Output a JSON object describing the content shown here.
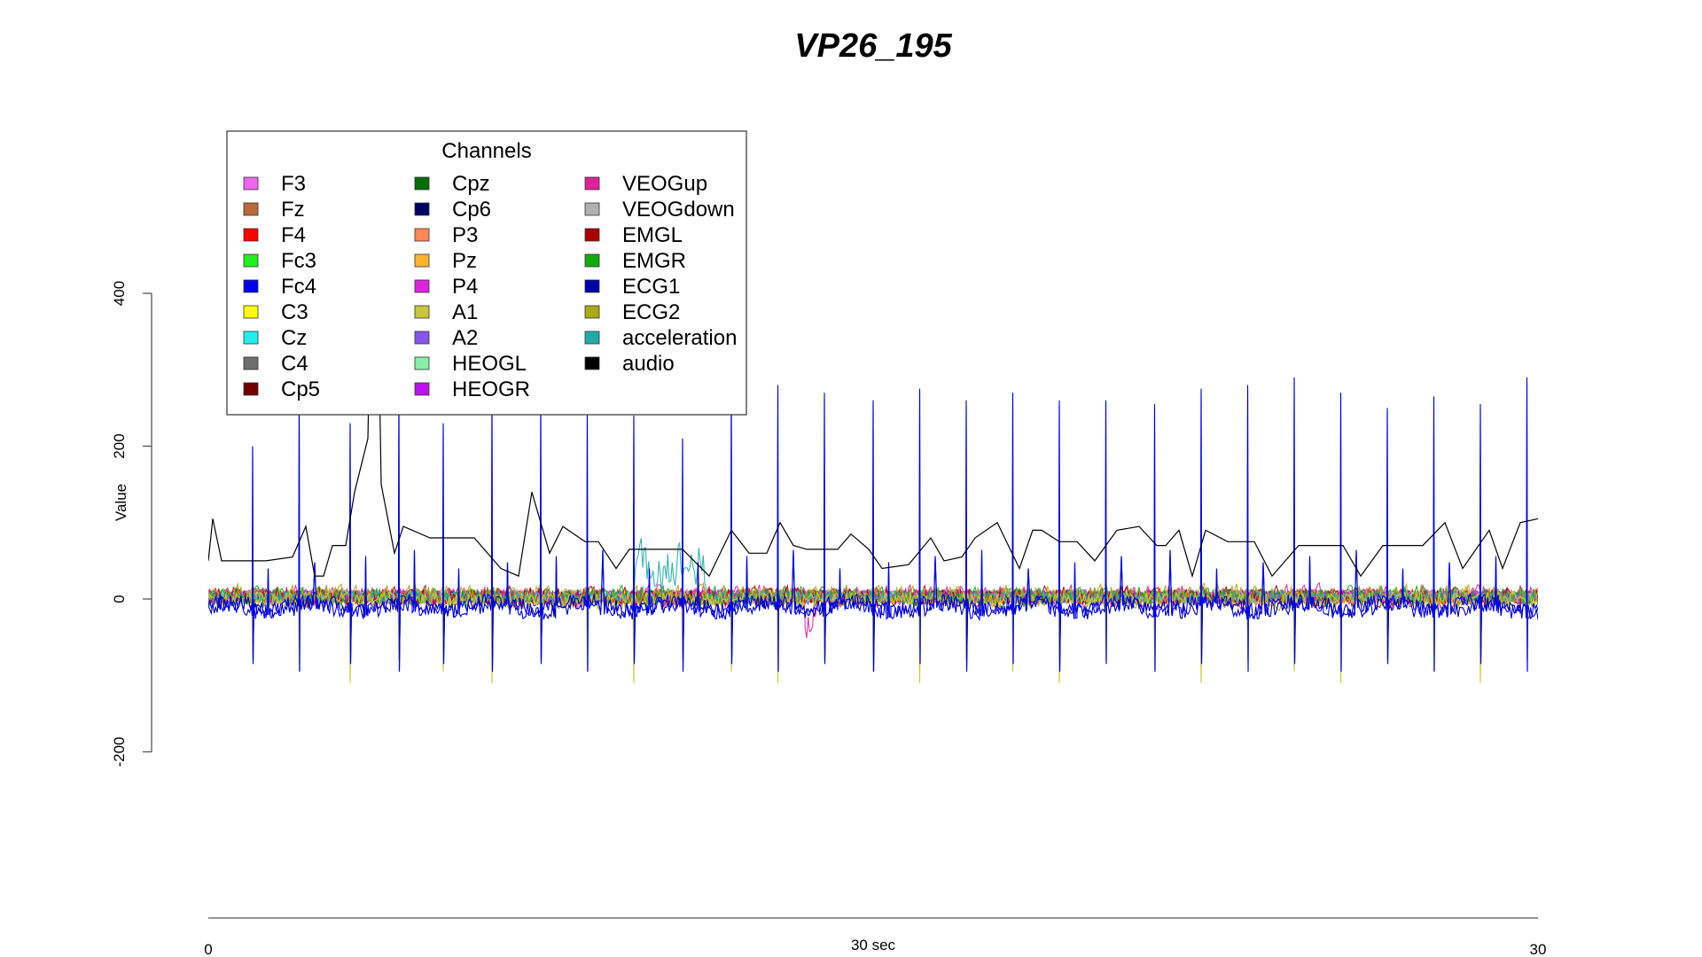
{
  "chart_data": {
    "type": "line",
    "title": "VP26_195",
    "xlabel": "30 sec",
    "ylabel": "Value",
    "xlim": [
      0,
      30
    ],
    "ylim": [
      -330,
      530
    ],
    "x_ticks": [
      "0",
      "30"
    ],
    "y_ticks": [
      400,
      200,
      0,
      -200
    ],
    "grid": false,
    "legend": {
      "title": "Channels",
      "placement": "top-left",
      "entries": [
        {
          "name": "F3",
          "color": "#EE66EE"
        },
        {
          "name": "Fz",
          "color": "#B86A3A"
        },
        {
          "name": "F4",
          "color": "#FF0000"
        },
        {
          "name": "Fc3",
          "color": "#22EE22"
        },
        {
          "name": "Fc4",
          "color": "#0000EE"
        },
        {
          "name": "C3",
          "color": "#FFFF00"
        },
        {
          "name": "Cz",
          "color": "#22EEEE"
        },
        {
          "name": "C4",
          "color": "#6E6E6E"
        },
        {
          "name": "Cp5",
          "color": "#6E0000"
        },
        {
          "name": "Cpz",
          "color": "#006E00"
        },
        {
          "name": "Cp6",
          "color": "#000066"
        },
        {
          "name": "P3",
          "color": "#FF8855"
        },
        {
          "name": "Pz",
          "color": "#FFB52A"
        },
        {
          "name": "P4",
          "color": "#DD22DD"
        },
        {
          "name": "A1",
          "color": "#C8C83A"
        },
        {
          "name": "A2",
          "color": "#8855EE"
        },
        {
          "name": "HEOGL",
          "color": "#88EEAA"
        },
        {
          "name": "HEOGR",
          "color": "#BB11EE"
        },
        {
          "name": "VEOGup",
          "color": "#DD2299"
        },
        {
          "name": "VEOGdown",
          "color": "#B0B0B0"
        },
        {
          "name": "EMGL",
          "color": "#AA0000"
        },
        {
          "name": "EMGR",
          "color": "#11AA11"
        },
        {
          "name": "ECG1",
          "color": "#0000AA"
        },
        {
          "name": "ECG2",
          "color": "#AAAA11"
        },
        {
          "name": "acceleration",
          "color": "#22AAAA"
        },
        {
          "name": "audio",
          "color": "#000000"
        }
      ]
    },
    "ecg_beat_times_sec": [
      1.0,
      2.05,
      3.2,
      4.3,
      5.3,
      6.4,
      7.5,
      8.55,
      9.6,
      10.7,
      11.8,
      12.85,
      13.9,
      15.0,
      16.05,
      17.1,
      18.15,
      19.2,
      20.25,
      21.35,
      22.4,
      23.45,
      24.5,
      25.55,
      26.6,
      27.65,
      28.7,
      29.75
    ],
    "ecg_peak_values": [
      200,
      270,
      230,
      270,
      230,
      260,
      260,
      250,
      240,
      210,
      270,
      280,
      270,
      260,
      275,
      260,
      270,
      260,
      260,
      255,
      275,
      280,
      290,
      270,
      250,
      265,
      255,
      290
    ],
    "audio_envelope": {
      "x": [
        0,
        0.1,
        0.3,
        0.6,
        1.0,
        1.3,
        1.9,
        2.2,
        2.4,
        2.6,
        2.8,
        3.1,
        3.3,
        3.6,
        3.7,
        3.8,
        3.9,
        4.2,
        4.4,
        5.0,
        5.7,
        6.0,
        6.6,
        7.0,
        7.3,
        7.7,
        8.0,
        8.5,
        8.8,
        9.2,
        9.5,
        10.0,
        10.7,
        11.3,
        11.8,
        12.2,
        12.6,
        12.9,
        13.2,
        13.5,
        14.2,
        14.5,
        14.9,
        15.2,
        15.8,
        16.3,
        16.6,
        17.0,
        17.3,
        17.8,
        18.3,
        18.6,
        18.8,
        19.2,
        19.6,
        20.0,
        20.5,
        21.0,
        21.4,
        21.6,
        21.9,
        22.2,
        22.5,
        23.0,
        23.6,
        24.0,
        24.6,
        25.0,
        25.6,
        26.0,
        26.5,
        27.0,
        27.4,
        27.9,
        28.3,
        28.9,
        29.2,
        29.6,
        30.0
      ],
      "y": [
        50,
        105,
        50,
        50,
        50,
        50,
        55,
        95,
        30,
        30,
        70,
        70,
        140,
        210,
        500,
        500,
        150,
        60,
        95,
        80,
        80,
        80,
        40,
        30,
        140,
        60,
        95,
        75,
        75,
        40,
        65,
        65,
        65,
        30,
        90,
        60,
        60,
        100,
        70,
        65,
        65,
        85,
        65,
        40,
        45,
        80,
        50,
        55,
        80,
        100,
        40,
        90,
        90,
        75,
        75,
        50,
        90,
        95,
        70,
        70,
        90,
        30,
        90,
        75,
        75,
        30,
        70,
        70,
        70,
        30,
        70,
        70,
        70,
        100,
        40,
        90,
        40,
        100,
        105
      ]
    }
  }
}
